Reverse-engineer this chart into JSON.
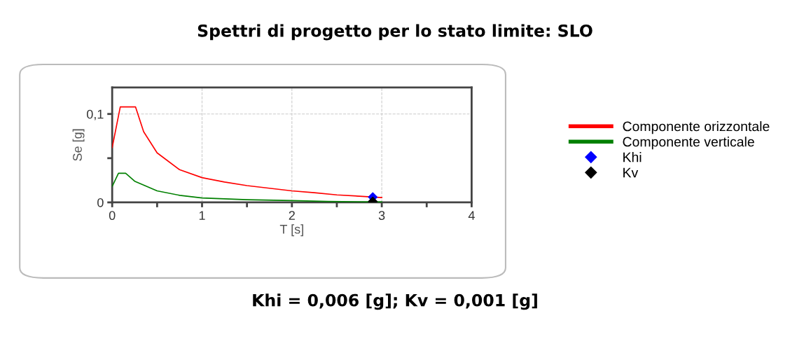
{
  "chart_data": {
    "type": "line",
    "title": "Spettri di progetto per lo stato limite: SLO",
    "xlabel": "T [s]",
    "ylabel": "Se [g]",
    "series": [
      {
        "name": "Componente orizzontale",
        "color": "#ff0000",
        "x": [
          0,
          0.09,
          0.26,
          0.35,
          0.5,
          0.75,
          1.0,
          1.25,
          1.5,
          1.75,
          2.0,
          2.25,
          2.5,
          2.75,
          3.0
        ],
        "values": [
          0.062,
          0.108,
          0.108,
          0.08,
          0.056,
          0.037,
          0.028,
          0.023,
          0.019,
          0.016,
          0.013,
          0.011,
          0.0085,
          0.007,
          0.0055
        ]
      },
      {
        "name": "Componente verticale",
        "color": "#008000",
        "x": [
          0,
          0.07,
          0.15,
          0.25,
          0.5,
          0.75,
          1.0,
          1.5,
          2.0,
          2.4,
          3.0
        ],
        "values": [
          0.018,
          0.033,
          0.033,
          0.024,
          0.013,
          0.008,
          0.005,
          0.003,
          0.002,
          0.001,
          0.0005
        ]
      },
      {
        "name": "Khi",
        "type": "scatter",
        "marker": "diamond",
        "color": "#0000ff",
        "x": [
          2.9
        ],
        "values": [
          0.006
        ]
      },
      {
        "name": "Kv",
        "type": "scatter",
        "marker": "diamond",
        "color": "#000000",
        "x": [
          2.9
        ],
        "values": [
          0.001
        ]
      }
    ],
    "xlim": [
      0,
      4
    ],
    "ylim": [
      0,
      0.13
    ],
    "xticks": [
      0,
      {
        "value": 0.5,
        "label": null
      },
      1,
      {
        "value": 1.5,
        "label": null
      },
      2,
      {
        "value": 2.5,
        "label": null
      },
      3,
      {
        "value": 3.5,
        "label": null
      },
      4
    ],
    "yticks": [
      {
        "value": 0,
        "label": "0"
      },
      {
        "value": 0.05,
        "label": null
      },
      {
        "value": 0.1,
        "label": "0,1"
      }
    ],
    "grid": true,
    "legend": "right",
    "annotations": [
      "Khi = 0,006 [g]; Kv = 0,001 [g]"
    ]
  }
}
